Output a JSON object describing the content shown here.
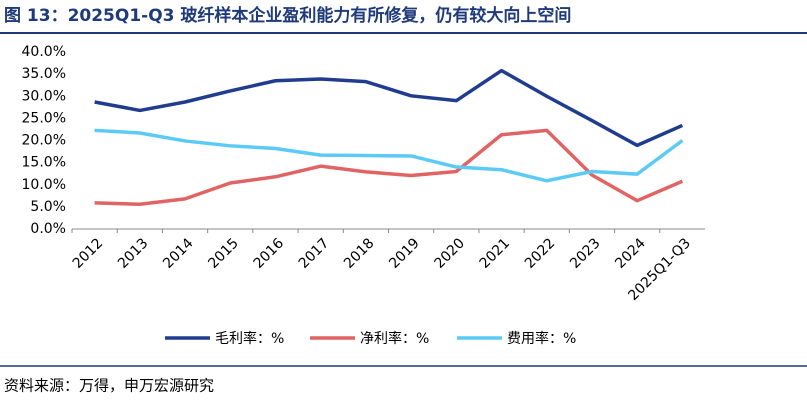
{
  "chart_data": {
    "type": "line",
    "title": "图 13：2025Q1-Q3 玻纤样本企业盈利能力有所修复，仍有较大向上空间",
    "source": "资料来源：万得，申万宏源研究",
    "categories": [
      "2012",
      "2013",
      "2014",
      "2015",
      "2016",
      "2017",
      "2018",
      "2019",
      "2020",
      "2021",
      "2022",
      "2023",
      "2024",
      "2025Q1-Q3"
    ],
    "series": [
      {
        "name": "毛利率：%",
        "color": "#1f3c8f",
        "values": [
          28.7,
          26.8,
          28.7,
          31.2,
          33.5,
          33.9,
          33.3,
          30.1,
          29.0,
          35.8,
          30.0,
          24.5,
          18.9,
          23.4
        ]
      },
      {
        "name": "净利率：%",
        "color": "#e06464",
        "values": [
          5.9,
          5.6,
          6.8,
          10.4,
          11.8,
          14.2,
          12.9,
          12.1,
          13.0,
          21.3,
          22.3,
          12.2,
          6.4,
          10.8
        ]
      },
      {
        "name": "费用率：%",
        "color": "#5ccaf6",
        "values": [
          22.3,
          21.7,
          19.9,
          18.8,
          18.2,
          16.7,
          16.6,
          16.5,
          14.0,
          13.4,
          10.9,
          13.0,
          12.4,
          20.0
        ]
      }
    ],
    "ylim": [
      0,
      40
    ],
    "yticks": [
      {
        "value": 0,
        "label": "0.0%"
      },
      {
        "value": 5,
        "label": "5.0%"
      },
      {
        "value": 10,
        "label": "10.0%"
      },
      {
        "value": 15,
        "label": "15.0%"
      },
      {
        "value": 20,
        "label": "20.0%"
      },
      {
        "value": 25,
        "label": "25.0%"
      },
      {
        "value": 30,
        "label": "30.0%"
      },
      {
        "value": 35,
        "label": "35.0%"
      },
      {
        "value": 40,
        "label": "40.0%"
      }
    ],
    "grid": false,
    "legend": "bottom"
  }
}
